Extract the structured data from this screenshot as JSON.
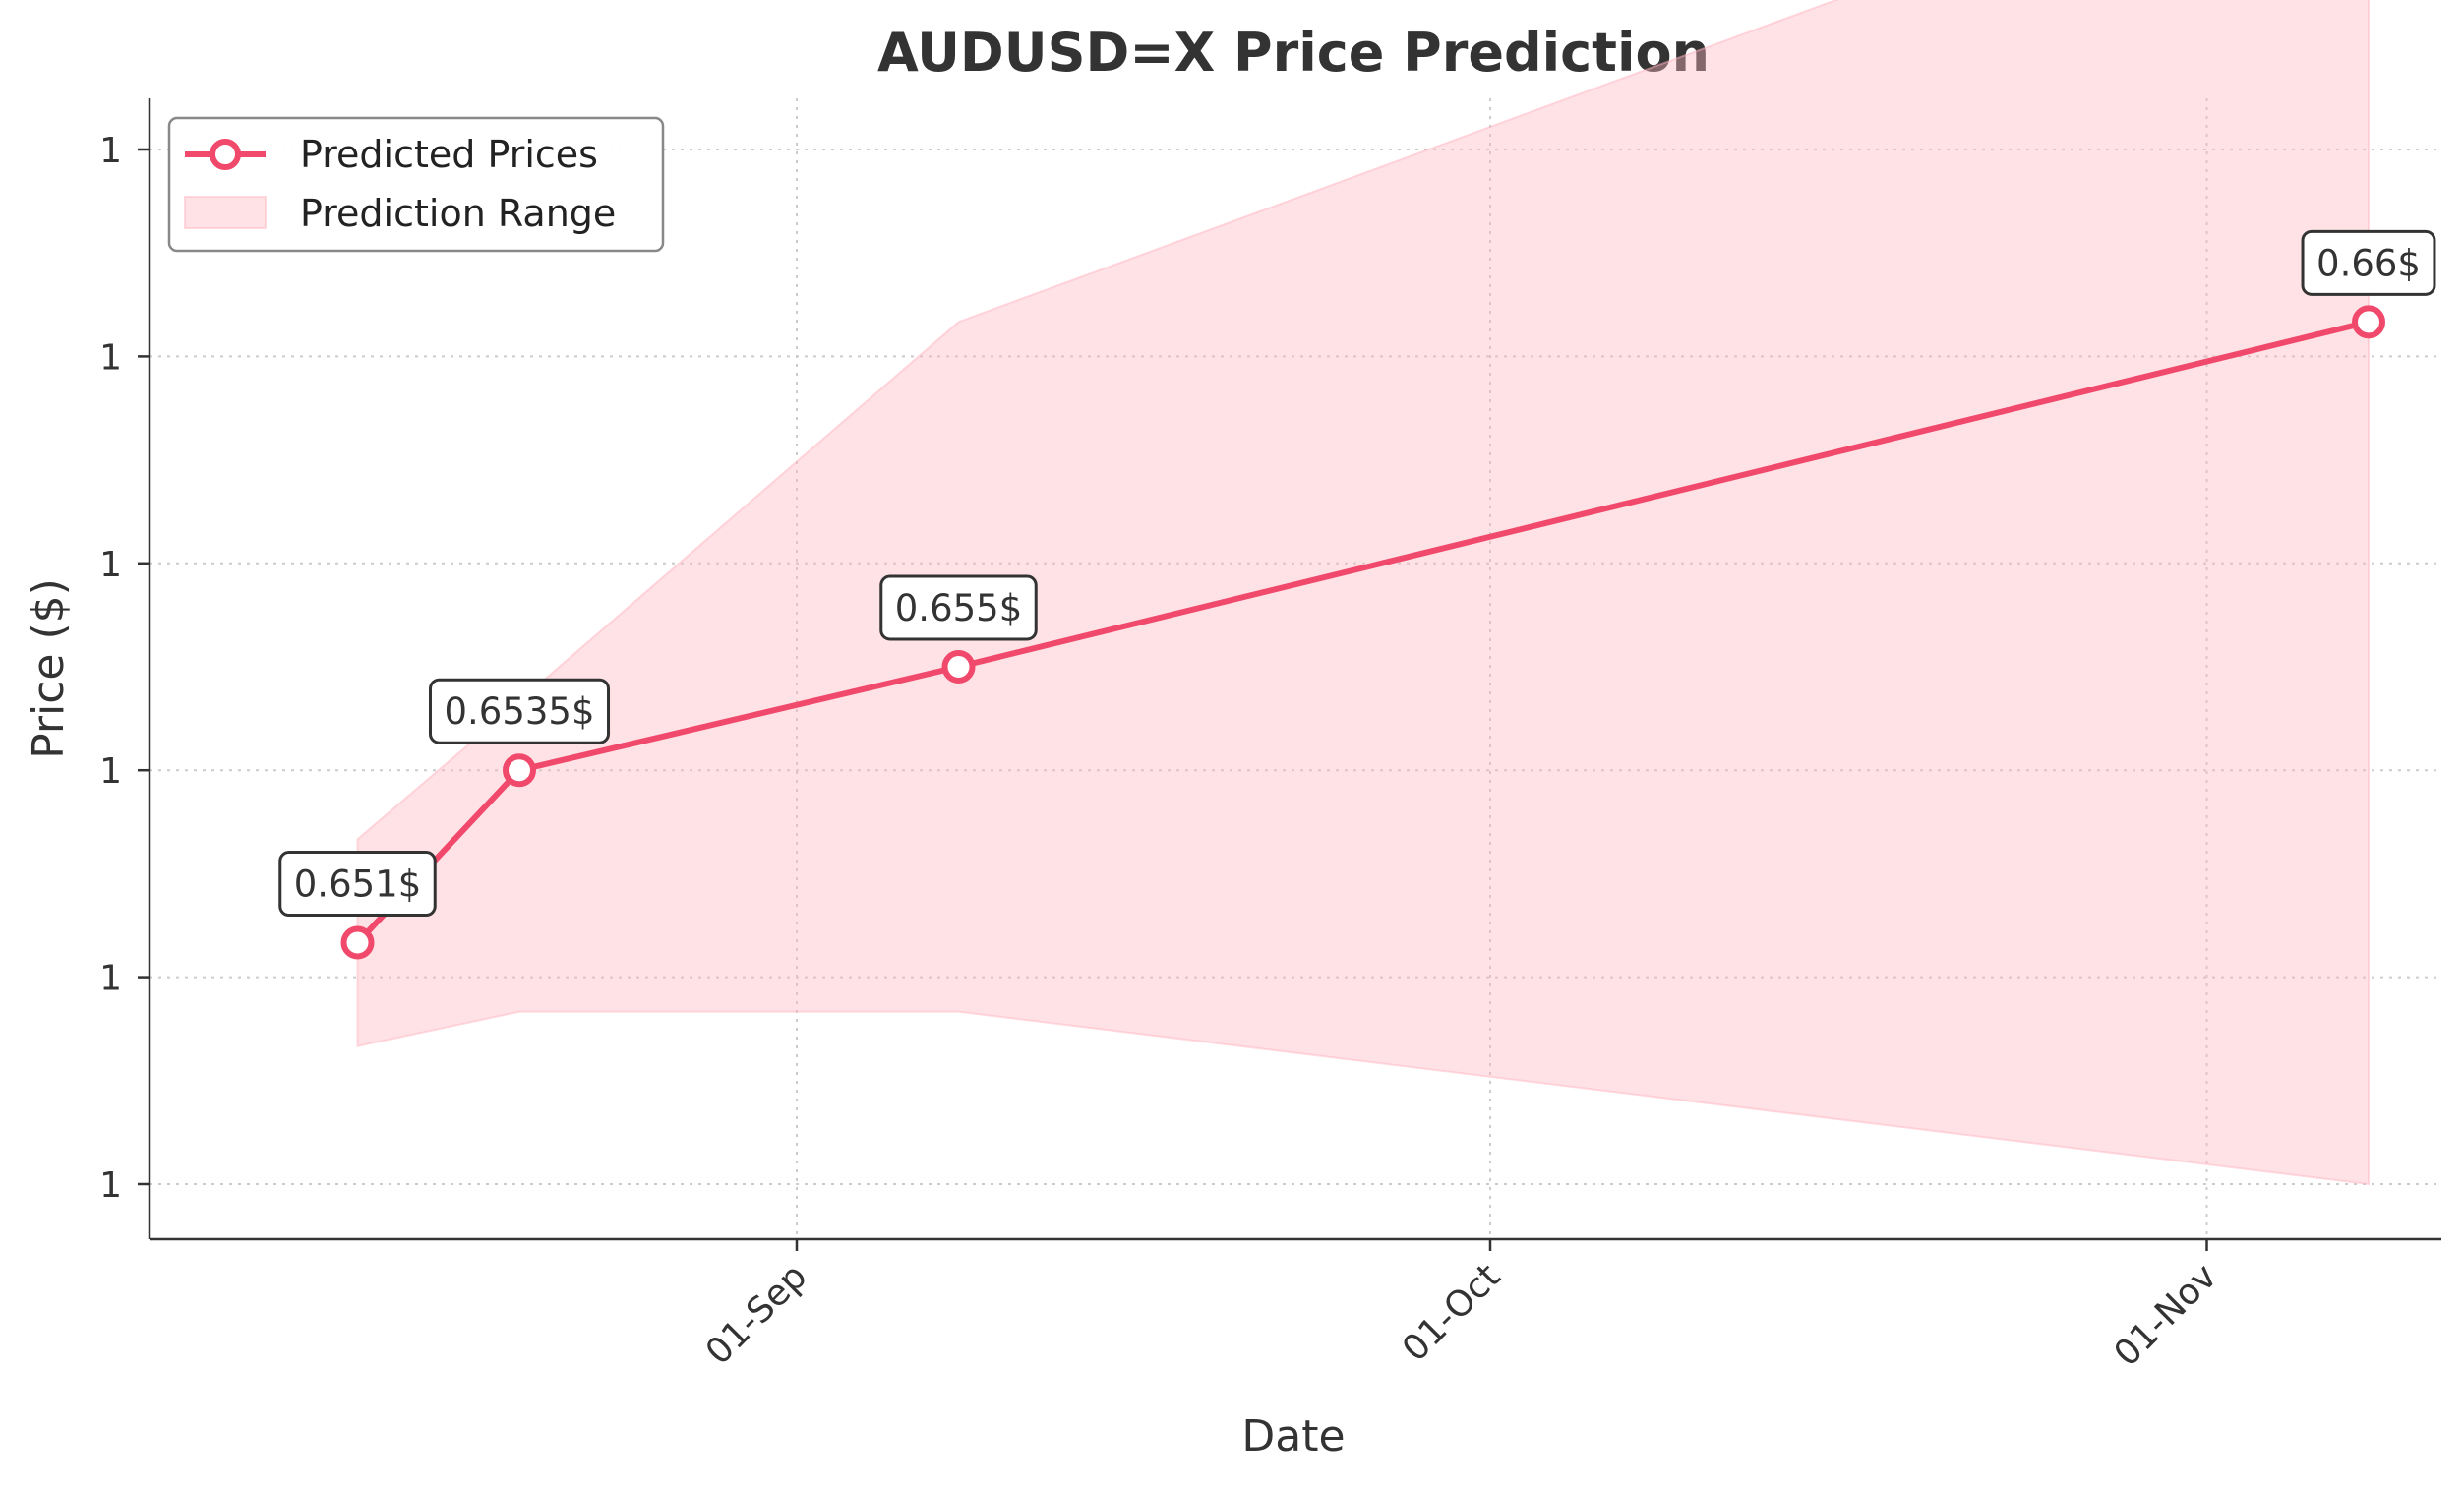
{
  "chart_data": {
    "type": "line",
    "title": "AUDUSD=X Price Prediction",
    "xlabel": "Date",
    "ylabel": "Price ($)",
    "x_tick_labels": [
      "01-Sep",
      "01-Oct",
      "01-Nov"
    ],
    "y_tick_labels": [
      "1",
      "1",
      "1",
      "1",
      "1",
      "1"
    ],
    "ylim": [
      0.6475,
      0.6625
    ],
    "grid": true,
    "legend_position": "top-left",
    "series": [
      {
        "name": "Predicted Prices",
        "color": "#f0496b",
        "x": [
          "2024-08-13",
          "2024-08-20",
          "2024-09-08",
          "2024-11-08"
        ],
        "y": [
          0.651,
          0.6535,
          0.655,
          0.66
        ]
      }
    ],
    "band": {
      "name": "Prediction Range",
      "color": "#ffb6c1",
      "x": [
        "2024-08-13",
        "2024-08-20",
        "2024-09-08",
        "2024-11-08"
      ],
      "lower": [
        0.6495,
        0.65,
        0.65,
        0.6475
      ],
      "upper": [
        0.6525,
        0.6545,
        0.66,
        0.6675
      ]
    },
    "annotations": [
      {
        "x": "2024-08-13",
        "y": 0.651,
        "text": "0.651$"
      },
      {
        "x": "2024-08-20",
        "y": 0.6535,
        "text": "0.6535$"
      },
      {
        "x": "2024-09-08",
        "y": 0.655,
        "text": "0.655$"
      },
      {
        "x": "2024-11-08",
        "y": 0.66,
        "text": "0.66$"
      }
    ]
  }
}
